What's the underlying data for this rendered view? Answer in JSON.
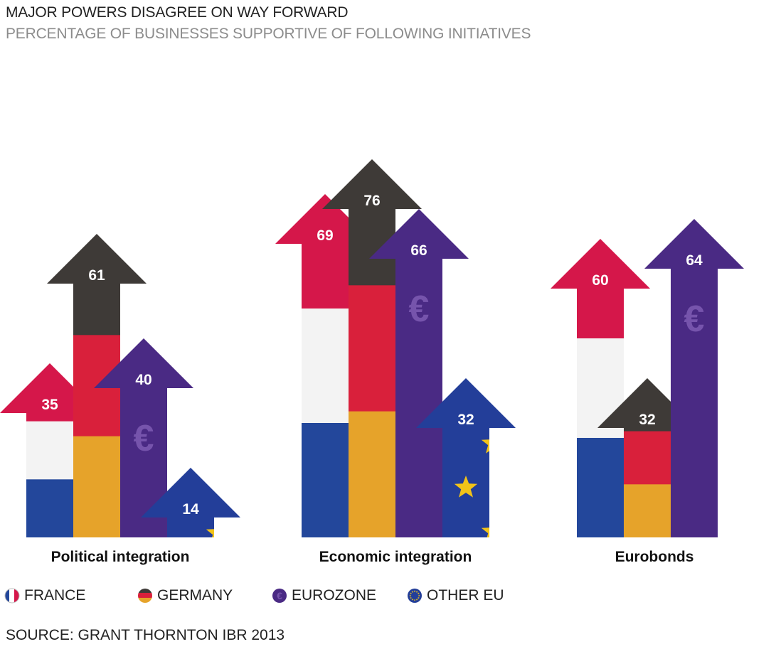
{
  "chart_data": {
    "type": "bar",
    "title": "MAJOR POWERS DISAGREE ON WAY FORWARD",
    "subtitle": "PERCENTAGE OF BUSINESSES SUPPORTIVE OF FOLLOWING INITIATIVES",
    "categories": [
      "Political integration",
      "Economic integration",
      "Eurobonds"
    ],
    "series": [
      {
        "name": "FRANCE",
        "values": [
          35,
          69,
          60
        ]
      },
      {
        "name": "GERMANY",
        "values": [
          61,
          76,
          32
        ]
      },
      {
        "name": "EUROZONE",
        "values": [
          40,
          66,
          64
        ]
      },
      {
        "name": "OTHER EU",
        "values": [
          14,
          32,
          null
        ]
      }
    ],
    "ylim": [
      0,
      100
    ],
    "grid": false,
    "legend_position": "bottom",
    "source": "SOURCE: GRANT THORNTON IBR 2013"
  },
  "colors": {
    "france_blue": "#23479b",
    "france_white": "#f3f3f3",
    "france_red": "#d5174a",
    "germany_black": "#3e3a37",
    "germany_red": "#d9203b",
    "germany_gold": "#e6a32a",
    "eurozone_purple": "#4a2a84",
    "eurozone_symbol": "#7654ac",
    "eu_blue": "#233e99",
    "eu_star": "#f2c318"
  },
  "icons": {
    "euro": "€",
    "france": "france-flag-icon",
    "germany": "germany-flag-icon",
    "eurozone": "euro-circle-icon",
    "other_eu": "eu-stars-circle-icon"
  }
}
